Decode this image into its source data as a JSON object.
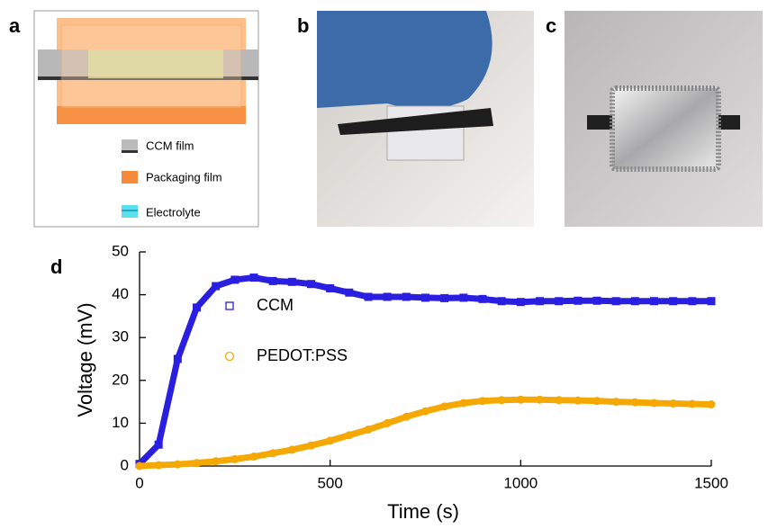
{
  "panels": {
    "a": {
      "label": "a",
      "legend": [
        "CCM film",
        "Packaging film",
        "Electrolyte"
      ]
    },
    "b": {
      "label": "b"
    },
    "c": {
      "label": "c"
    }
  },
  "chart_data": {
    "type": "scatter",
    "label": "d",
    "x_label": "Time (s)",
    "y_label": "Voltage (mV)",
    "x": [
      0,
      50,
      100,
      150,
      200,
      250,
      300,
      350,
      400,
      450,
      500,
      550,
      600,
      650,
      700,
      750,
      800,
      850,
      900,
      950,
      1000,
      1050,
      1100,
      1150,
      1200,
      1250,
      1300,
      1350,
      1400,
      1450,
      1500
    ],
    "series": [
      {
        "name": "CCM",
        "color": "#2a1fe0",
        "marker": "square",
        "values": [
          0.5,
          5,
          25,
          37,
          42,
          43.5,
          44,
          43.2,
          43,
          42.5,
          41.5,
          40.5,
          39.5,
          39.5,
          39.5,
          39.3,
          39.2,
          39.3,
          39,
          38.5,
          38.3,
          38.5,
          38.5,
          38.6,
          38.6,
          38.5,
          38.5,
          38.5,
          38.5,
          38.5,
          38.5
        ]
      },
      {
        "name": "PEDOT:PSS",
        "color": "#f5a800",
        "marker": "circle",
        "values": [
          0,
          0.2,
          0.4,
          0.7,
          1.1,
          1.6,
          2.2,
          3,
          3.8,
          4.8,
          5.9,
          7.2,
          8.5,
          10,
          11.5,
          12.8,
          13.9,
          14.7,
          15.2,
          15.4,
          15.5,
          15.5,
          15.4,
          15.3,
          15.2,
          15,
          14.9,
          14.7,
          14.6,
          14.5,
          14.4
        ]
      }
    ],
    "xlim": [
      0,
      1500
    ],
    "xticks": [
      0,
      500,
      1000,
      1500
    ],
    "ylim": [
      0,
      50
    ],
    "yticks": [
      0,
      10,
      20,
      30,
      40,
      50
    ]
  }
}
